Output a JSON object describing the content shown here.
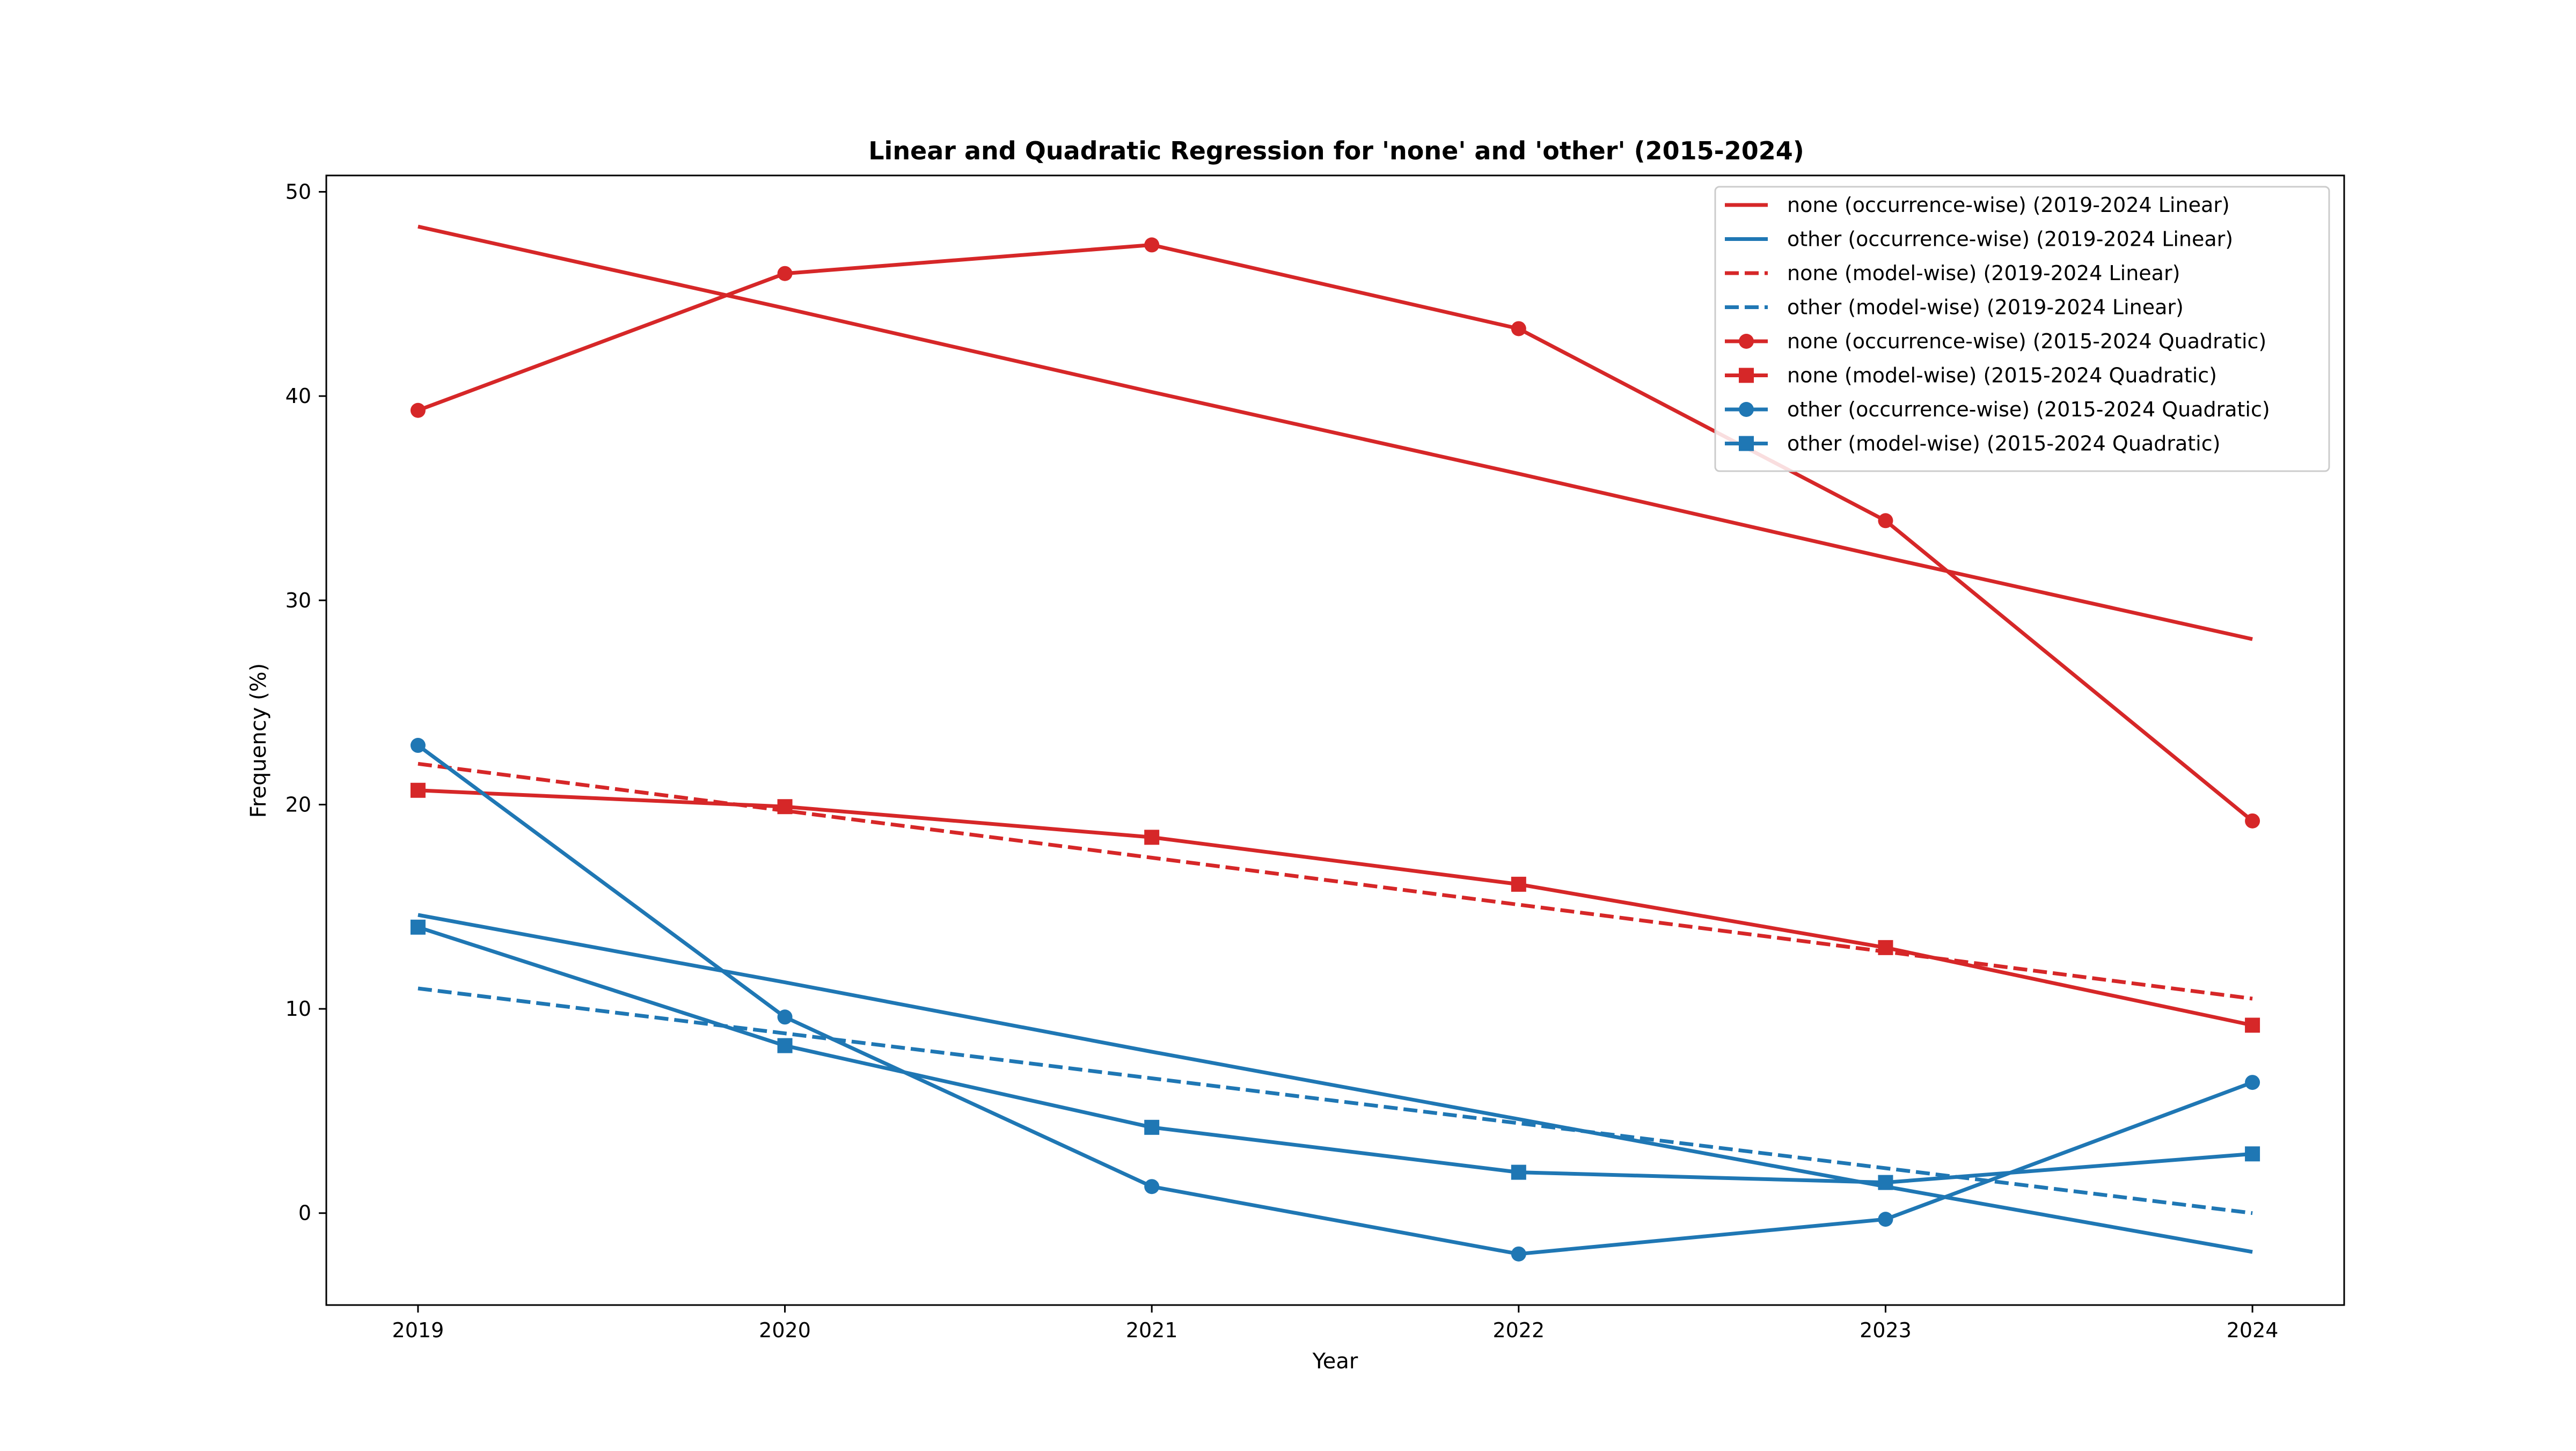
{
  "chart_data": {
    "type": "line",
    "title": "Linear and Quadratic Regression for 'none' and 'other' (2015-2024)",
    "xlabel": "Year",
    "ylabel": "Frequency (%)",
    "x": [
      2019,
      2020,
      2021,
      2022,
      2023,
      2024
    ],
    "xlim": [
      2018.75,
      2024.25
    ],
    "ylim": [
      -4.5,
      50.8
    ],
    "yticks": [
      0,
      10,
      20,
      30,
      40,
      50
    ],
    "grid": false,
    "legend_position": "top-right",
    "series": [
      {
        "name": "none (occurrence-wise) (2019-2024 Linear)",
        "color": "#d62728",
        "dash": "solid",
        "marker": "none",
        "values": [
          48.3,
          44.3,
          40.2,
          36.2,
          32.1,
          28.1
        ]
      },
      {
        "name": "other (occurrence-wise) (2019-2024 Linear)",
        "color": "#1f77b4",
        "dash": "solid",
        "marker": "none",
        "values": [
          14.6,
          11.3,
          7.9,
          4.6,
          1.3,
          -1.9
        ]
      },
      {
        "name": "none (model-wise) (2019-2024 Linear)",
        "color": "#d62728",
        "dash": "dashed",
        "marker": "none",
        "values": [
          22.0,
          19.7,
          17.4,
          15.1,
          12.8,
          10.5
        ]
      },
      {
        "name": "other (model-wise) (2019-2024 Linear)",
        "color": "#1f77b4",
        "dash": "dashed",
        "marker": "none",
        "values": [
          11.0,
          8.8,
          6.6,
          4.4,
          2.2,
          0.0
        ]
      },
      {
        "name": "none (occurrence-wise) (2015-2024 Quadratic)",
        "color": "#d62728",
        "dash": "solid",
        "marker": "circle",
        "values": [
          39.3,
          46.0,
          47.4,
          43.3,
          33.9,
          19.2
        ]
      },
      {
        "name": "none (model-wise) (2015-2024 Quadratic)",
        "color": "#d62728",
        "dash": "solid",
        "marker": "square",
        "values": [
          20.7,
          19.9,
          18.4,
          16.1,
          13.0,
          9.2
        ]
      },
      {
        "name": "other (occurrence-wise) (2015-2024 Quadratic)",
        "color": "#1f77b4",
        "dash": "solid",
        "marker": "circle",
        "values": [
          22.9,
          9.6,
          1.3,
          -2.0,
          -0.3,
          6.4
        ]
      },
      {
        "name": "other (model-wise) (2015-2024 Quadratic)",
        "color": "#1f77b4",
        "dash": "solid",
        "marker": "square",
        "values": [
          14.0,
          8.2,
          4.2,
          2.0,
          1.5,
          2.9
        ]
      }
    ]
  }
}
